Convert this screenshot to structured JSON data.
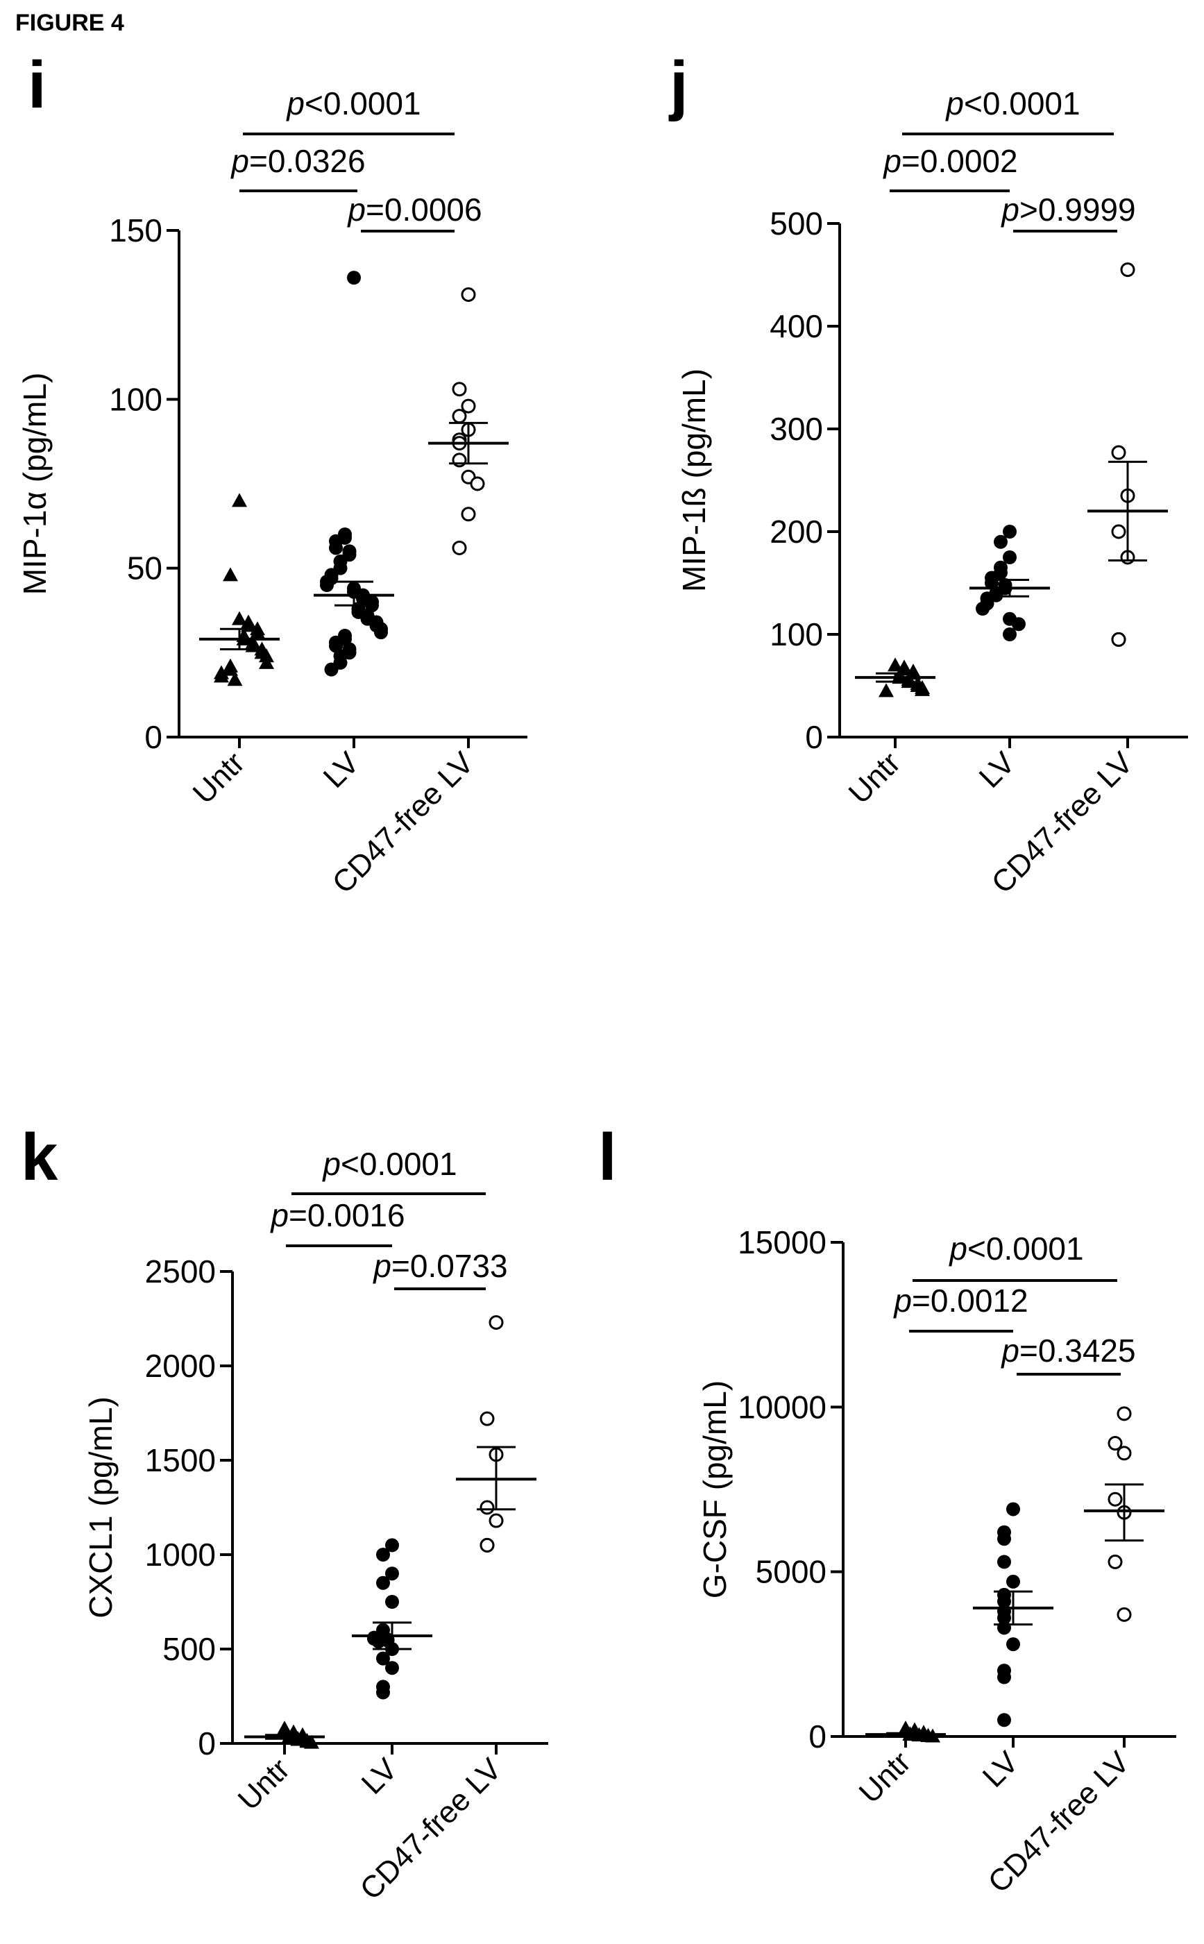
{
  "figure_title": "FIGURE 4",
  "chart_data": [
    {
      "panel": "i",
      "type": "scatter",
      "ylabel": "MIP-1α (pg/mL)",
      "ylim": [
        0,
        150
      ],
      "yticks": [
        0,
        50,
        100,
        150
      ],
      "categories": [
        "Untr",
        "LV",
        "CD47-free LV"
      ],
      "series": [
        {
          "marker": "triangle",
          "values": [
            70,
            48,
            35,
            34,
            33,
            32,
            31,
            30,
            29,
            28,
            27,
            26,
            25,
            24,
            22,
            21,
            20,
            19,
            18,
            17
          ]
        },
        {
          "marker": "filled-circle",
          "values": [
            136,
            60,
            59,
            58,
            56,
            55,
            54,
            52,
            50,
            48,
            47,
            46,
            45,
            44,
            43,
            42,
            41,
            40,
            39,
            38,
            37,
            36,
            35,
            34,
            33,
            32,
            31,
            30,
            29,
            28,
            27,
            26,
            25,
            24,
            22,
            20
          ]
        },
        {
          "marker": "open-circle",
          "values": [
            131,
            103,
            98,
            95,
            91,
            88,
            87,
            82,
            77,
            75,
            66,
            56
          ]
        }
      ],
      "means": [
        29,
        42,
        87
      ],
      "sem": [
        [
          26,
          32
        ],
        [
          39,
          46
        ],
        [
          81,
          93
        ]
      ],
      "comparisons": [
        {
          "label_p": "p",
          "label_rest": "<0.0001",
          "from": 0,
          "to": 2
        },
        {
          "label_p": "p",
          "label_rest": "=0.0326",
          "from": 0,
          "to": 1
        },
        {
          "label_p": "p",
          "label_rest": "=0.0006",
          "from": 1,
          "to": 2
        }
      ]
    },
    {
      "panel": "j",
      "type": "scatter",
      "ylabel": "MIP-1ß (pg/mL)",
      "ylim": [
        0,
        500
      ],
      "yticks": [
        0,
        100,
        200,
        300,
        400,
        500
      ],
      "categories": [
        "Untr",
        "LV",
        "CD47-free LV"
      ],
      "series": [
        {
          "marker": "triangle",
          "values": [
            70,
            68,
            66,
            64,
            62,
            60,
            58,
            56,
            54,
            52,
            50,
            48,
            46,
            45
          ]
        },
        {
          "marker": "filled-circle",
          "values": [
            200,
            190,
            175,
            165,
            160,
            155,
            150,
            148,
            145,
            140,
            138,
            135,
            130,
            125,
            115,
            110,
            100
          ]
        },
        {
          "marker": "open-circle",
          "values": [
            455,
            277,
            235,
            200,
            175,
            95,
            95
          ]
        }
      ],
      "means": [
        58,
        145,
        220
      ],
      "sem": [
        [
          54,
          62
        ],
        [
          137,
          153
        ],
        [
          172,
          268
        ]
      ],
      "comparisons": [
        {
          "label_p": "p",
          "label_rest": "<0.0001",
          "from": 0,
          "to": 2
        },
        {
          "label_p": "p",
          "label_rest": "=0.0002",
          "from": 0,
          "to": 1
        },
        {
          "label_p": "p",
          "label_rest": ">0.9999",
          "from": 1,
          "to": 2
        }
      ]
    },
    {
      "panel": "k",
      "type": "scatter",
      "ylabel": "CXCL1 (pg/mL)",
      "ylim": [
        0,
        2500
      ],
      "yticks": [
        0,
        500,
        1000,
        1500,
        2000,
        2500
      ],
      "categories": [
        "Untr",
        "LV",
        "CD47-free LV"
      ],
      "series": [
        {
          "marker": "triangle",
          "values": [
            80,
            60,
            50,
            45,
            40,
            35,
            30,
            25,
            20,
            15,
            10,
            5
          ]
        },
        {
          "marker": "filled-circle",
          "values": [
            1050,
            1000,
            900,
            850,
            750,
            600,
            575,
            560,
            555,
            550,
            545,
            540,
            500,
            450,
            400,
            300,
            270
          ]
        },
        {
          "marker": "open-circle",
          "values": [
            2230,
            1720,
            1530,
            1250,
            1180,
            1050,
            1050
          ]
        }
      ],
      "means": [
        35,
        570,
        1400
      ],
      "sem": [
        [
          25,
          45
        ],
        [
          500,
          640
        ],
        [
          1240,
          1570
        ]
      ],
      "comparisons": [
        {
          "label_p": "p",
          "label_rest": "<0.0001",
          "from": 0,
          "to": 2
        },
        {
          "label_p": "p",
          "label_rest": "=0.0016",
          "from": 0,
          "to": 1
        },
        {
          "label_p": "p",
          "label_rest": "=0.0733",
          "from": 1,
          "to": 2
        }
      ]
    },
    {
      "panel": "l",
      "type": "scatter",
      "ylabel": "G-CSF (pg/mL)",
      "ylim": [
        0,
        15000
      ],
      "yticks": [
        0,
        5000,
        10000,
        15000
      ],
      "categories": [
        "Untr",
        "LV",
        "CD47-free LV"
      ],
      "series": [
        {
          "marker": "triangle",
          "values": [
            250,
            200,
            150,
            120,
            100,
            80,
            60,
            50,
            40,
            30,
            20,
            10
          ]
        },
        {
          "marker": "filled-circle",
          "values": [
            6900,
            6200,
            6000,
            5300,
            4700,
            4300,
            4100,
            3800,
            3600,
            3300,
            2800,
            2000,
            1800,
            500
          ]
        },
        {
          "marker": "open-circle",
          "values": [
            9800,
            8900,
            8600,
            7200,
            6800,
            5300,
            3700
          ]
        }
      ],
      "means": [
        60,
        3900,
        6850
      ],
      "sem": [
        [
          20,
          100
        ],
        [
          3400,
          4400
        ],
        [
          5950,
          7650
        ]
      ],
      "comparisons": [
        {
          "label_p": "p",
          "label_rest": "<0.0001",
          "from": 0,
          "to": 2
        },
        {
          "label_p": "p",
          "label_rest": "=0.0012",
          "from": 0,
          "to": 1
        },
        {
          "label_p": "p",
          "label_rest": "=0.3425",
          "from": 1,
          "to": 2
        }
      ]
    }
  ]
}
